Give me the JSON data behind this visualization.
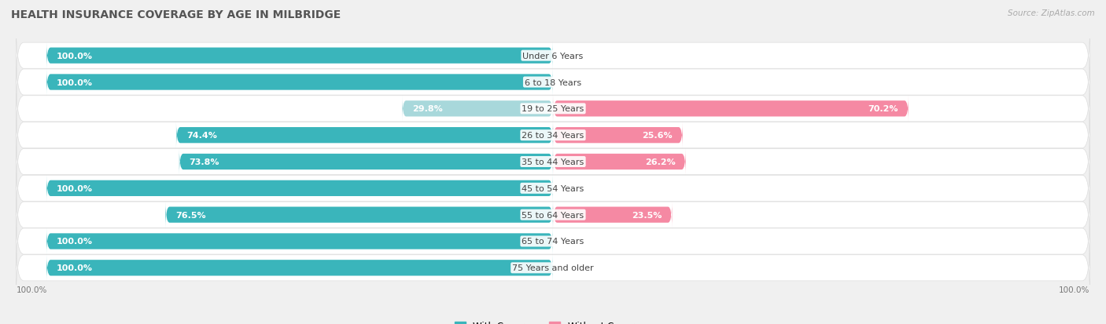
{
  "title": "HEALTH INSURANCE COVERAGE BY AGE IN MILBRIDGE",
  "source": "Source: ZipAtlas.com",
  "categories": [
    "Under 6 Years",
    "6 to 18 Years",
    "19 to 25 Years",
    "26 to 34 Years",
    "35 to 44 Years",
    "45 to 54 Years",
    "55 to 64 Years",
    "65 to 74 Years",
    "75 Years and older"
  ],
  "with_coverage": [
    100.0,
    100.0,
    29.8,
    74.4,
    73.8,
    100.0,
    76.5,
    100.0,
    100.0
  ],
  "without_coverage": [
    0.0,
    0.0,
    70.2,
    25.6,
    26.2,
    0.0,
    23.5,
    0.0,
    0.0
  ],
  "color_with": "#3ab5bb",
  "color_with_light": "#a8d8db",
  "color_without": "#f589a3",
  "title_fontsize": 10,
  "label_fontsize": 8,
  "value_fontsize": 8,
  "bar_height": 0.6,
  "legend_fontsize": 8.5
}
